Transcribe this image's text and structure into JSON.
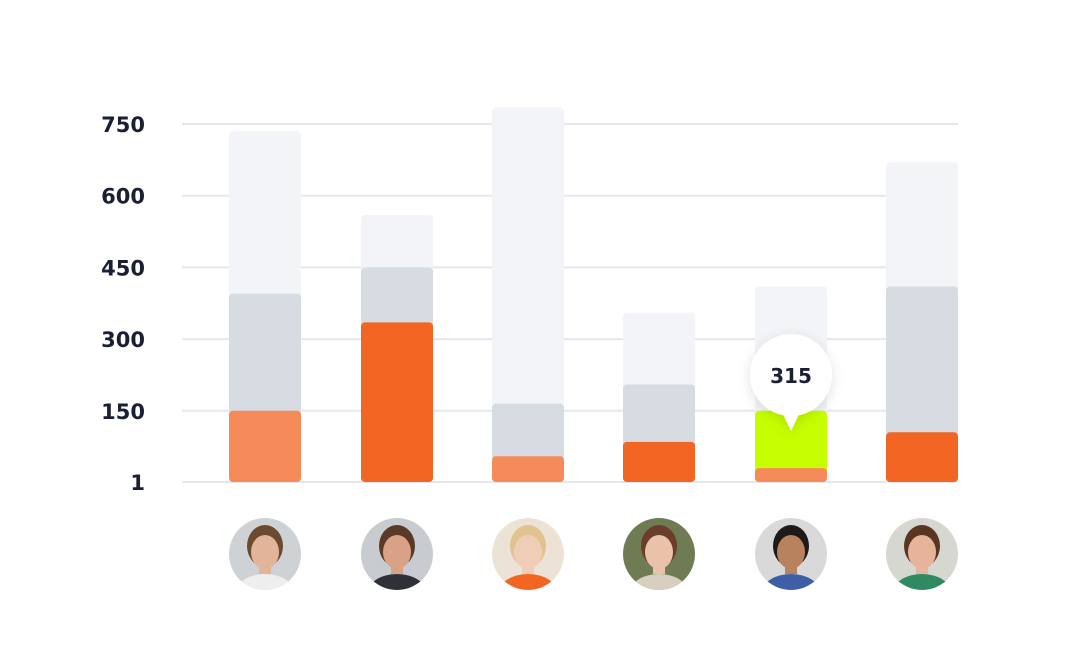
{
  "chart_data": {
    "type": "bar",
    "yticks": [
      1,
      150,
      300,
      450,
      600,
      750
    ],
    "ylim": [
      1,
      750
    ],
    "grid": true,
    "colors": {
      "grid": "#e6e7ee",
      "track": "#f3f4f7",
      "mid": "#d6dce2",
      "light_orange": "#f48b59",
      "orange": "#f26522",
      "highlight": "#c6ff00",
      "text": "#1b1f33"
    },
    "bars": [
      {
        "person": "person-1",
        "total": 735,
        "mid": 395,
        "bottom": 150,
        "bottom_color": "light_orange",
        "highlight": null
      },
      {
        "person": "person-2",
        "total": 560,
        "mid": 450,
        "bottom": 335,
        "bottom_color": "orange",
        "highlight": null
      },
      {
        "person": "person-3",
        "total": 785,
        "mid": 165,
        "bottom": 55,
        "bottom_color": "light_orange",
        "highlight": null
      },
      {
        "person": "person-4",
        "total": 355,
        "mid": 205,
        "bottom": 85,
        "bottom_color": "orange",
        "highlight": null
      },
      {
        "person": "person-5",
        "total": 410,
        "mid": 150,
        "bottom": 30,
        "bottom_color": "light_orange",
        "highlight": 150
      },
      {
        "person": "person-6",
        "total": 670,
        "mid": 410,
        "bottom": 105,
        "bottom_color": "orange",
        "highlight": null
      }
    ],
    "tooltip": {
      "bar_index": 4,
      "label": "315"
    }
  },
  "avatars": [
    {
      "name": "person-1",
      "bg": "#cfd2d4",
      "skin": "#e2b49a",
      "hair": "#6b4a32",
      "shirt": "#eeeeee"
    },
    {
      "name": "person-2",
      "bg": "#c8ccd0",
      "skin": "#d9a185",
      "hair": "#5a3a25",
      "shirt": "#2f3136"
    },
    {
      "name": "person-3",
      "bg": "#ece3d6",
      "skin": "#f0cdb6",
      "hair": "#e0c38e",
      "shirt": "#f26522"
    },
    {
      "name": "person-4",
      "bg": "#6f7b52",
      "skin": "#eac2aa",
      "hair": "#6a3e2a",
      "shirt": "#d8cfc0"
    },
    {
      "name": "person-5",
      "bg": "#d9d9d9",
      "skin": "#b9825e",
      "hair": "#1f1a17",
      "shirt": "#3e5fa6"
    },
    {
      "name": "person-6",
      "bg": "#d7d7d2",
      "skin": "#e6b49b",
      "hair": "#5a3522",
      "shirt": "#2f8a61"
    }
  ]
}
